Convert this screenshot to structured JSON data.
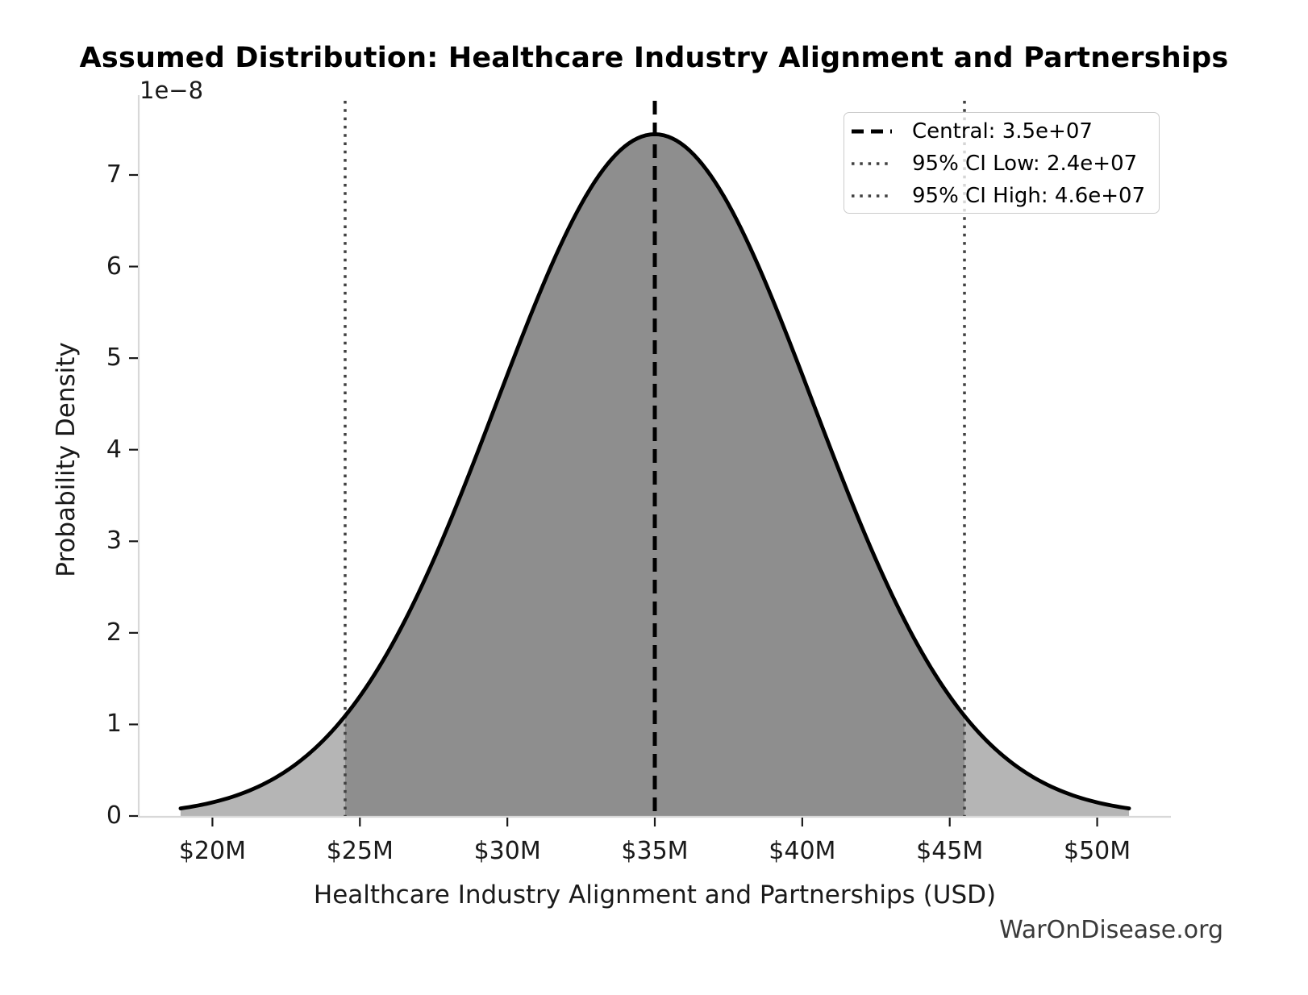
{
  "figure": {
    "watermark": "WarOnDisease.org"
  },
  "chart_data": {
    "type": "area",
    "subtype": "normal-distribution-density",
    "title": "Assumed Distribution: Healthcare Industry Alignment and Partnerships",
    "xlabel": "Healthcare Industry Alignment and Partnerships (USD)",
    "ylabel": "Probability Density",
    "y_scale_offset_label": "1e−8",
    "mean": 35000000,
    "sigma": 5360000,
    "peak_density": 7.445e-08,
    "curve_domain": [
      18920000,
      51080000
    ],
    "central_line": 35000000,
    "ci_low_line": 24500000,
    "ci_high_line": 45500000,
    "xlim": [
      17500000,
      52500000
    ],
    "ylim": [
      0,
      7.81e-08
    ],
    "grid": false,
    "legend_position": "upper right",
    "x_ticks": [
      {
        "value": 20000000,
        "label": "$20M"
      },
      {
        "value": 25000000,
        "label": "$25M"
      },
      {
        "value": 30000000,
        "label": "$30M"
      },
      {
        "value": 35000000,
        "label": "$35M"
      },
      {
        "value": 40000000,
        "label": "$40M"
      },
      {
        "value": 45000000,
        "label": "$45M"
      },
      {
        "value": 50000000,
        "label": "$50M"
      }
    ],
    "y_ticks": [
      {
        "value": 0,
        "label": "0"
      },
      {
        "value": 1e-08,
        "label": "1"
      },
      {
        "value": 2e-08,
        "label": "2"
      },
      {
        "value": 3e-08,
        "label": "3"
      },
      {
        "value": 4e-08,
        "label": "4"
      },
      {
        "value": 5e-08,
        "label": "5"
      },
      {
        "value": 6e-08,
        "label": "6"
      },
      {
        "value": 7e-08,
        "label": "7"
      }
    ],
    "legend": [
      {
        "label": "Central: 3.5e+07",
        "style": "dashed",
        "color": "#000000"
      },
      {
        "label": "95% CI Low: 2.4e+07",
        "style": "dotted",
        "color": "#404040"
      },
      {
        "label": "95% CI High: 4.6e+07",
        "style": "dotted",
        "color": "#404040"
      }
    ],
    "colors": {
      "curve": "#000000",
      "fill_inner": "#8e8e8e",
      "fill_outer": "#b5b5b5",
      "central_line": "#000000",
      "ci_line": "#404040",
      "spine": "#d8d8d8",
      "tick": "#1a1a1a",
      "text": "#1a1a1a",
      "watermark": "#3a3a3a"
    }
  }
}
